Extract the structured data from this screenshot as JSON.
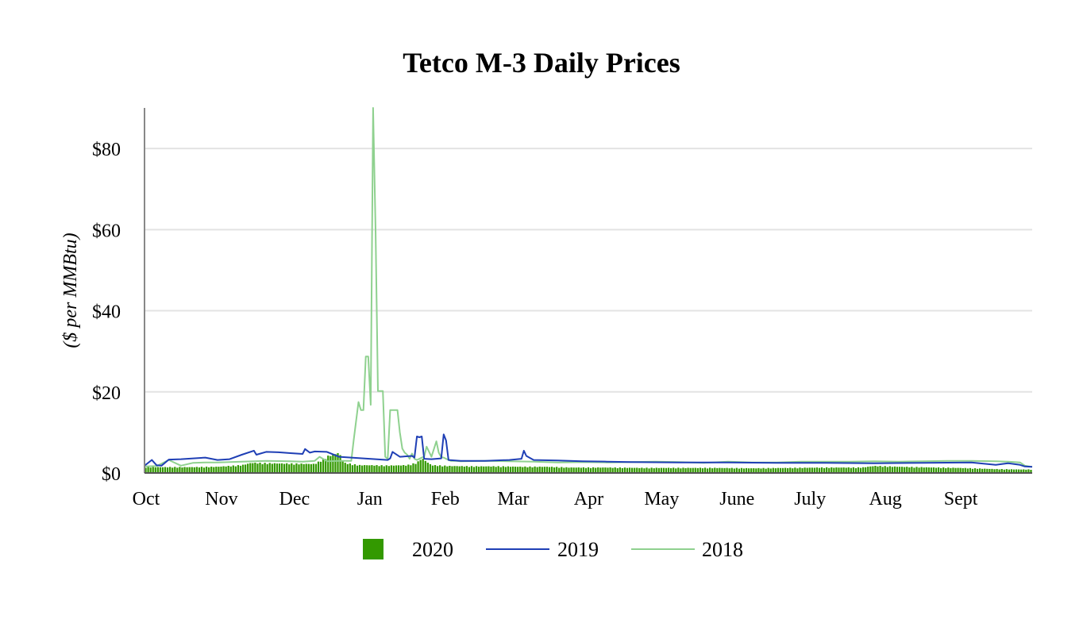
{
  "chart_data": {
    "type": "bar+line",
    "title": "Tetco M-3 Daily Prices",
    "ylabel": "($ per MMBtu)",
    "xlabel": "",
    "ylim": [
      0,
      90
    ],
    "yticks": [
      0,
      20,
      40,
      60,
      80
    ],
    "ytick_labels": [
      "$0",
      "$20",
      "$40",
      "$60",
      "$80"
    ],
    "xlim_days": [
      0,
      365
    ],
    "month_labels": [
      "Oct",
      "Nov",
      "Dec",
      "Jan",
      "Feb",
      "Mar",
      "Apr",
      "May",
      "June",
      "July",
      "Aug",
      "Sept"
    ],
    "month_start_days": [
      0,
      31,
      61,
      92,
      123,
      151,
      182,
      212,
      243,
      273,
      304,
      335
    ],
    "grid": true,
    "legend_position": "bottom",
    "series": [
      {
        "name": "2020",
        "kind": "bar",
        "color": "#339900",
        "x": [
          0,
          10,
          20,
          30,
          40,
          44,
          50,
          60,
          70,
          72,
          76,
          80,
          82,
          88,
          92,
          100,
          108,
          112,
          114,
          118,
          125,
          135,
          145,
          155,
          165,
          175,
          190,
          205,
          220,
          235,
          250,
          265,
          280,
          295,
          300,
          310,
          325,
          335,
          350,
          360,
          365
        ],
        "values": [
          1.5,
          1.5,
          1.5,
          1.6,
          2.0,
          2.6,
          2.5,
          2.4,
          2.3,
          3.0,
          4.5,
          5.2,
          2.6,
          2.0,
          2.0,
          1.9,
          2.0,
          2.6,
          3.8,
          2.0,
          1.8,
          1.7,
          1.7,
          1.6,
          1.6,
          1.4,
          1.4,
          1.3,
          1.3,
          1.3,
          1.2,
          1.3,
          1.4,
          1.4,
          1.8,
          1.6,
          1.4,
          1.3,
          1.0,
          0.9,
          0.9
        ]
      },
      {
        "name": "2019",
        "kind": "line",
        "color": "#1f3fb5",
        "x": [
          0,
          3,
          5,
          7,
          10,
          15,
          20,
          25,
          30,
          35,
          40,
          45,
          46,
          50,
          55,
          60,
          65,
          66,
          68,
          70,
          75,
          80,
          85,
          90,
          95,
          100,
          101,
          102,
          105,
          110,
          111,
          112,
          113,
          114,
          115,
          118,
          120,
          122,
          123,
          124,
          125,
          130,
          140,
          150,
          155,
          156,
          157,
          160,
          170,
          180,
          190,
          200,
          220,
          240,
          260,
          280,
          300,
          320,
          340,
          350,
          355,
          360,
          362,
          365
        ],
        "values": [
          1.8,
          3.2,
          1.9,
          1.8,
          3.3,
          3.4,
          3.6,
          3.8,
          3.2,
          3.4,
          4.5,
          5.5,
          4.5,
          5.2,
          5.1,
          4.9,
          4.7,
          5.9,
          5.0,
          5.3,
          5.2,
          4.0,
          3.8,
          3.6,
          3.4,
          3.2,
          3.6,
          5.2,
          4.0,
          4.2,
          3.8,
          9.0,
          8.8,
          9.0,
          3.5,
          3.4,
          3.5,
          3.6,
          9.5,
          8.0,
          3.2,
          3.0,
          3.0,
          3.2,
          3.5,
          5.5,
          4.2,
          3.2,
          3.1,
          2.9,
          2.8,
          2.7,
          2.6,
          2.6,
          2.5,
          2.5,
          2.4,
          2.5,
          2.6,
          2.0,
          2.4,
          2.0,
          1.6,
          1.5
        ]
      },
      {
        "name": "2018",
        "kind": "line",
        "color": "#8fd18f",
        "x": [
          0,
          5,
          10,
          15,
          20,
          25,
          30,
          40,
          50,
          60,
          65,
          70,
          72,
          75,
          80,
          85,
          86,
          88,
          89,
          90,
          91,
          92,
          93,
          94,
          95,
          96,
          97,
          98,
          99,
          100,
          101,
          102,
          103,
          104,
          105,
          106,
          107,
          108,
          109,
          110,
          111,
          112,
          113,
          114,
          115,
          116,
          118,
          120,
          121,
          122,
          123,
          124,
          125,
          126,
          128,
          130,
          140,
          150,
          160,
          170,
          180,
          190,
          200,
          210,
          220,
          230,
          240,
          250,
          260,
          270,
          280,
          290,
          300,
          310,
          320,
          330,
          340,
          350,
          355,
          360,
          362,
          365
        ],
        "values": [
          1.6,
          1.7,
          3.2,
          1.8,
          2.5,
          2.6,
          2.6,
          2.8,
          3.0,
          2.9,
          2.8,
          3.0,
          4.0,
          2.9,
          3.0,
          3.0,
          8.0,
          17.5,
          15.5,
          15.5,
          28.7,
          28.7,
          16.8,
          90.0,
          60.0,
          20.2,
          20.2,
          20.2,
          4.0,
          3.5,
          15.5,
          15.5,
          15.5,
          15.5,
          10.0,
          6.0,
          5.0,
          4.5,
          3.5,
          4.8,
          3.5,
          3.2,
          3.5,
          3.8,
          4.0,
          6.5,
          4.0,
          7.8,
          5.0,
          3.9,
          3.8,
          3.5,
          3.2,
          3.0,
          3.0,
          2.9,
          3.0,
          2.9,
          2.8,
          2.6,
          2.7,
          2.6,
          2.7,
          2.8,
          2.7,
          2.5,
          2.8,
          2.6,
          2.6,
          2.8,
          2.8,
          2.8,
          2.9,
          2.8,
          2.9,
          3.0,
          3.0,
          2.9,
          2.8,
          2.6,
          1.8,
          1.5
        ]
      }
    ]
  }
}
